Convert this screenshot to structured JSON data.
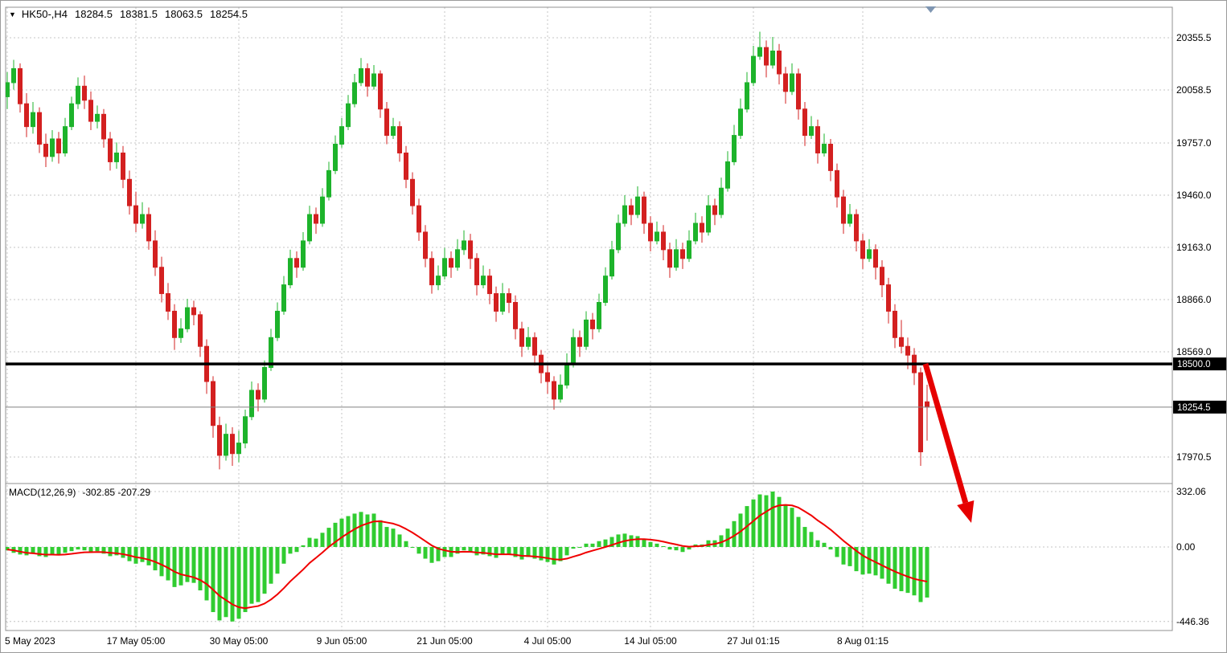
{
  "header": {
    "dropdown_glyph": "▼",
    "symbol_timeframe": "HK50-,H4",
    "open": "18284.5",
    "high": "18381.5",
    "low": "18063.5",
    "close": "18254.5"
  },
  "macd": {
    "label": "MACD(12,26,9)",
    "values": "-302.85 -207.29",
    "axis_labels": [
      "332.06",
      "0.00",
      "-446.36"
    ],
    "axis_values": [
      332.06,
      0,
      -446.36
    ]
  },
  "price_axis": {
    "labels": [
      "20355.5",
      "20058.5",
      "19757.0",
      "19460.0",
      "19163.0",
      "18866.0",
      "18569.0",
      "17970.5"
    ],
    "values": [
      20355.5,
      20058.5,
      19757.0,
      19460.0,
      19163.0,
      18866.0,
      18569.0,
      17970.5
    ],
    "badges": {
      "support": {
        "label": "18500.0",
        "price": 18500.0
      },
      "current": {
        "label": "18254.5",
        "price": 18254.5
      }
    }
  },
  "time_axis": {
    "ticks": [
      {
        "label": "5 May 2023",
        "i": 0,
        "align": "left"
      },
      {
        "label": "17 May 05:00",
        "i": 20
      },
      {
        "label": "30 May 05:00",
        "i": 36
      },
      {
        "label": "9 Jun 05:00",
        "i": 52
      },
      {
        "label": "21 Jun 05:00",
        "i": 68
      },
      {
        "label": "4 Jul 05:00",
        "i": 84
      },
      {
        "label": "14 Jul 05:00",
        "i": 100
      },
      {
        "label": "27 Jul 01:15",
        "i": 116
      },
      {
        "label": "8 Aug 01:15",
        "i": 133
      }
    ]
  },
  "colors": {
    "up": "#1db32b",
    "down": "#d32020",
    "macd_bar": "#30cc30",
    "signal_line": "#f00000",
    "grid": "#c4c4c4",
    "frame": "#909090",
    "badge_bg": "#000000",
    "badge_fg": "#ffffff",
    "current_price_line": "#808080",
    "arrow": "#e60000",
    "shift_marker": "#7f96b2"
  },
  "objects": {
    "support_line": {
      "type": "horizontal-line",
      "price": 18500.0,
      "color": "#000000",
      "thickness": 3.5
    },
    "trend_arrow": {
      "type": "arrow",
      "from": [
        1150,
        452
      ],
      "to": [
        1207,
        650
      ],
      "color": "#e60000",
      "thickness": 7
    }
  },
  "chart_data": [
    {
      "type": "candlestick",
      "title": "HK50-,H4",
      "symbol": "HK50-",
      "timeframe": "H4",
      "ylim": [
        17890,
        20530
      ],
      "grid": true,
      "ohlc": [
        [
          20020,
          20160,
          19950,
          20100
        ],
        [
          20100,
          20230,
          20060,
          20180
        ],
        [
          20180,
          20210,
          19930,
          19980
        ],
        [
          19980,
          20040,
          19790,
          19850
        ],
        [
          19850,
          19990,
          19810,
          19930
        ],
        [
          19930,
          19960,
          19700,
          19750
        ],
        [
          19750,
          19810,
          19620,
          19680
        ],
        [
          19680,
          19830,
          19650,
          19780
        ],
        [
          19780,
          19820,
          19640,
          19700
        ],
        [
          19700,
          19900,
          19680,
          19850
        ],
        [
          19850,
          20020,
          19830,
          19980
        ],
        [
          19980,
          20130,
          19950,
          20080
        ],
        [
          20080,
          20140,
          19950,
          20000
        ],
        [
          20000,
          20050,
          19830,
          19880
        ],
        [
          19880,
          19970,
          19840,
          19920
        ],
        [
          19920,
          19950,
          19730,
          19780
        ],
        [
          19780,
          19820,
          19600,
          19650
        ],
        [
          19650,
          19760,
          19610,
          19700
        ],
        [
          19700,
          19740,
          19500,
          19550
        ],
        [
          19550,
          19600,
          19350,
          19400
        ],
        [
          19400,
          19480,
          19250,
          19300
        ],
        [
          19300,
          19420,
          19270,
          19350
        ],
        [
          19350,
          19390,
          19150,
          19200
        ],
        [
          19200,
          19260,
          19000,
          19050
        ],
        [
          19050,
          19110,
          18850,
          18900
        ],
        [
          18900,
          18960,
          18750,
          18800
        ],
        [
          18800,
          18840,
          18580,
          18650
        ],
        [
          18650,
          18760,
          18620,
          18700
        ],
        [
          18700,
          18870,
          18680,
          18820
        ],
        [
          18820,
          18860,
          18720,
          18780
        ],
        [
          18780,
          18800,
          18540,
          18600
        ],
        [
          18600,
          18640,
          18330,
          18400
        ],
        [
          18400,
          18430,
          18080,
          18150
        ],
        [
          18150,
          18200,
          17900,
          17980
        ],
        [
          17980,
          18160,
          17950,
          18100
        ],
        [
          18100,
          18140,
          17920,
          17990
        ],
        [
          17990,
          18120,
          17940,
          18050
        ],
        [
          18050,
          18240,
          18020,
          18200
        ],
        [
          18200,
          18400,
          18180,
          18350
        ],
        [
          18350,
          18390,
          18230,
          18300
        ],
        [
          18300,
          18520,
          18280,
          18480
        ],
        [
          18480,
          18700,
          18460,
          18650
        ],
        [
          18650,
          18850,
          18630,
          18800
        ],
        [
          18800,
          19000,
          18780,
          18950
        ],
        [
          18950,
          19150,
          18930,
          19100
        ],
        [
          19100,
          19140,
          18990,
          19050
        ],
        [
          19050,
          19250,
          19030,
          19200
        ],
        [
          19200,
          19400,
          19180,
          19350
        ],
        [
          19350,
          19390,
          19240,
          19300
        ],
        [
          19300,
          19500,
          19280,
          19450
        ],
        [
          19450,
          19650,
          19430,
          19600
        ],
        [
          19600,
          19800,
          19580,
          19750
        ],
        [
          19750,
          19900,
          19730,
          19850
        ],
        [
          19850,
          20030,
          19830,
          19980
        ],
        [
          19980,
          20150,
          19960,
          20100
        ],
        [
          20100,
          20240,
          20080,
          20180
        ],
        [
          20180,
          20210,
          20020,
          20080
        ],
        [
          20080,
          20200,
          20060,
          20150
        ],
        [
          20150,
          20170,
          19900,
          19950
        ],
        [
          19950,
          19990,
          19750,
          19800
        ],
        [
          19800,
          19900,
          19780,
          19850
        ],
        [
          19850,
          19880,
          19650,
          19700
        ],
        [
          19700,
          19740,
          19500,
          19550
        ],
        [
          19550,
          19590,
          19350,
          19400
        ],
        [
          19400,
          19440,
          19200,
          19250
        ],
        [
          19250,
          19290,
          19050,
          19100
        ],
        [
          19100,
          19140,
          18900,
          18950
        ],
        [
          18950,
          19060,
          18920,
          19000
        ],
        [
          19000,
          19160,
          18980,
          19100
        ],
        [
          19100,
          19140,
          18990,
          19050
        ],
        [
          19050,
          19210,
          19030,
          19150
        ],
        [
          19150,
          19260,
          19120,
          19200
        ],
        [
          19200,
          19240,
          19040,
          19100
        ],
        [
          19100,
          19130,
          18890,
          18950
        ],
        [
          18950,
          19060,
          18930,
          19000
        ],
        [
          19000,
          19040,
          18840,
          18900
        ],
        [
          18900,
          18940,
          18740,
          18800
        ],
        [
          18800,
          18960,
          18780,
          18900
        ],
        [
          18900,
          18930,
          18790,
          18850
        ],
        [
          18850,
          18890,
          18640,
          18700
        ],
        [
          18700,
          18740,
          18540,
          18600
        ],
        [
          18600,
          18710,
          18580,
          18650
        ],
        [
          18650,
          18680,
          18490,
          18550
        ],
        [
          18550,
          18580,
          18390,
          18450
        ],
        [
          18450,
          18490,
          18330,
          18400
        ],
        [
          18400,
          18430,
          18240,
          18300
        ],
        [
          18300,
          18440,
          18280,
          18380
        ],
        [
          18380,
          18560,
          18360,
          18500
        ],
        [
          18500,
          18700,
          18480,
          18650
        ],
        [
          18650,
          18690,
          18540,
          18600
        ],
        [
          18600,
          18800,
          18580,
          18750
        ],
        [
          18750,
          18790,
          18640,
          18700
        ],
        [
          18700,
          18900,
          18680,
          18850
        ],
        [
          18850,
          19050,
          18830,
          19000
        ],
        [
          19000,
          19200,
          18980,
          19150
        ],
        [
          19150,
          19350,
          19130,
          19300
        ],
        [
          19300,
          19460,
          19280,
          19400
        ],
        [
          19400,
          19440,
          19290,
          19350
        ],
        [
          19350,
          19510,
          19330,
          19450
        ],
        [
          19450,
          19480,
          19240,
          19300
        ],
        [
          19300,
          19340,
          19140,
          19200
        ],
        [
          19200,
          19310,
          19180,
          19250
        ],
        [
          19250,
          19290,
          19090,
          19150
        ],
        [
          19150,
          19190,
          18990,
          19050
        ],
        [
          19050,
          19210,
          19030,
          19150
        ],
        [
          19150,
          19190,
          19040,
          19100
        ],
        [
          19100,
          19260,
          19080,
          19200
        ],
        [
          19200,
          19360,
          19180,
          19300
        ],
        [
          19300,
          19340,
          19190,
          19250
        ],
        [
          19250,
          19460,
          19230,
          19400
        ],
        [
          19400,
          19440,
          19290,
          19350
        ],
        [
          19350,
          19560,
          19330,
          19500
        ],
        [
          19500,
          19710,
          19480,
          19650
        ],
        [
          19650,
          19860,
          19630,
          19800
        ],
        [
          19800,
          20010,
          19780,
          19950
        ],
        [
          19950,
          20160,
          19930,
          20100
        ],
        [
          20100,
          20310,
          20080,
          20250
        ],
        [
          20250,
          20390,
          20230,
          20300
        ],
        [
          20300,
          20340,
          20130,
          20200
        ],
        [
          20200,
          20360,
          20180,
          20280
        ],
        [
          20280,
          20320,
          20090,
          20150
        ],
        [
          20150,
          20190,
          19980,
          20050
        ],
        [
          20050,
          20210,
          20030,
          20150
        ],
        [
          20150,
          20180,
          19890,
          19950
        ],
        [
          19950,
          19990,
          19740,
          19800
        ],
        [
          19800,
          19910,
          19780,
          19850
        ],
        [
          19850,
          19890,
          19640,
          19700
        ],
        [
          19700,
          19810,
          19680,
          19750
        ],
        [
          19750,
          19780,
          19540,
          19600
        ],
        [
          19600,
          19640,
          19390,
          19450
        ],
        [
          19450,
          19490,
          19240,
          19300
        ],
        [
          19300,
          19410,
          19280,
          19350
        ],
        [
          19350,
          19380,
          19140,
          19200
        ],
        [
          19200,
          19240,
          19040,
          19100
        ],
        [
          19100,
          19210,
          19080,
          19150
        ],
        [
          19150,
          19180,
          18980,
          19050
        ],
        [
          19050,
          19090,
          18880,
          18950
        ],
        [
          18950,
          18990,
          18730,
          18800
        ],
        [
          18800,
          18840,
          18590,
          18650
        ],
        [
          18650,
          18750,
          18560,
          18600
        ],
        [
          18600,
          18650,
          18470,
          18550
        ],
        [
          18550,
          18590,
          18380,
          18450
        ],
        [
          18450,
          18480,
          17920,
          18000
        ],
        [
          18284.5,
          18381.5,
          18063.5,
          18254.5
        ]
      ]
    },
    {
      "type": "bar+line",
      "name": "MACD(12,26,9)",
      "macd_value": -302.85,
      "signal_value": -207.29,
      "ylim": [
        -446.36,
        332.06
      ],
      "histogram": [
        -20,
        -35,
        -45,
        -50,
        -40,
        -55,
        -60,
        -45,
        -50,
        -35,
        -25,
        -15,
        -20,
        -30,
        -25,
        -40,
        -55,
        -50,
        -65,
        -85,
        -100,
        -90,
        -110,
        -140,
        -175,
        -200,
        -240,
        -230,
        -210,
        -215,
        -260,
        -320,
        -390,
        -440,
        -420,
        -446.36,
        -430,
        -390,
        -340,
        -330,
        -280,
        -220,
        -160,
        -100,
        -40,
        -30,
        10,
        55,
        50,
        85,
        115,
        145,
        170,
        185,
        200,
        210,
        195,
        200,
        160,
        120,
        110,
        75,
        35,
        -5,
        -40,
        -70,
        -95,
        -85,
        -60,
        -60,
        -40,
        -20,
        -30,
        -50,
        -45,
        -55,
        -65,
        -45,
        -45,
        -60,
        -75,
        -60,
        -70,
        -80,
        -90,
        -105,
        -85,
        -50,
        -10,
        -5,
        20,
        20,
        35,
        45,
        60,
        75,
        80,
        70,
        65,
        45,
        30,
        20,
        5,
        -15,
        -20,
        -30,
        -15,
        15,
        15,
        40,
        40,
        70,
        110,
        155,
        200,
        245,
        285,
        315,
        310,
        332.06,
        300,
        255,
        235,
        180,
        120,
        90,
        40,
        25,
        -15,
        -60,
        -105,
        -115,
        -145,
        -165,
        -160,
        -170,
        -190,
        -220,
        -250,
        -265,
        -275,
        -290,
        -330,
        -302.85
      ],
      "signal": [
        -15,
        -20,
        -28,
        -35,
        -38,
        -42,
        -46,
        -46,
        -47,
        -45,
        -41,
        -36,
        -32,
        -31,
        -30,
        -31,
        -35,
        -38,
        -43,
        -51,
        -61,
        -67,
        -76,
        -89,
        -106,
        -125,
        -148,
        -164,
        -173,
        -182,
        -198,
        -222,
        -256,
        -293,
        -318,
        -344,
        -361,
        -367,
        -360,
        -354,
        -339,
        -315,
        -284,
        -247,
        -206,
        -171,
        -135,
        -96,
        -65,
        -33,
        1,
        30,
        58,
        83,
        107,
        127,
        141,
        153,
        154,
        147,
        140,
        127,
        108,
        86,
        61,
        35,
        9,
        -10,
        -20,
        -28,
        -30,
        -28,
        -29,
        -33,
        -35,
        -39,
        -44,
        -44,
        -44,
        -47,
        -53,
        -54,
        -57,
        -61,
        -67,
        -74,
        -76,
        -70,
        -58,
        -47,
        -33,
        -22,
        -11,
        0,
        12,
        25,
        36,
        43,
        47,
        47,
        44,
        39,
        32,
        23,
        15,
        6,
        2,
        4,
        6,
        13,
        18,
        28,
        45,
        67,
        93,
        124,
        156,
        188,
        212,
        236,
        249,
        252,
        249,
        236,
        213,
        189,
        159,
        133,
        104,
        71,
        37,
        7,
        -23,
        -51,
        -72,
        -91,
        -110,
        -129,
        -147,
        -163,
        -178,
        -191,
        -200,
        -207.29
      ]
    }
  ]
}
